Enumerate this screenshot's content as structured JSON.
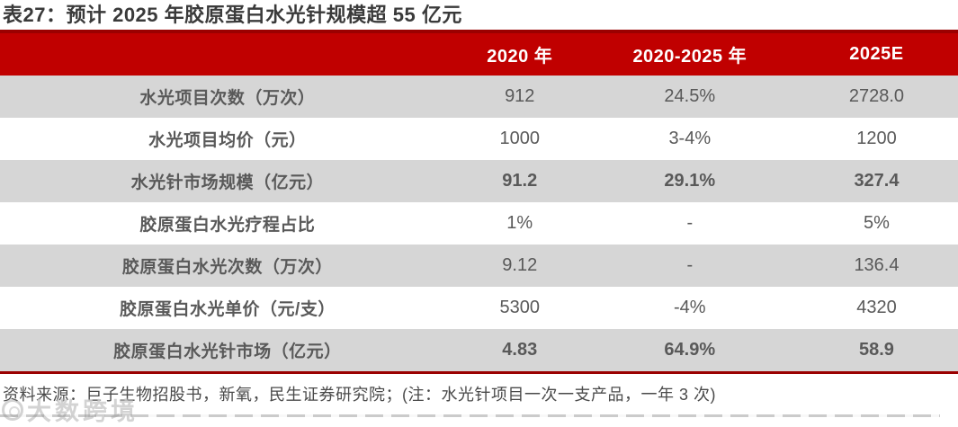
{
  "title": "表27：预计 2025 年胶原蛋白水光针规模超 55 亿元",
  "colors": {
    "header_red": "#c00000",
    "rule_dark_red": "#9a0000",
    "row_shade_gray": "#d6d6d6",
    "table_text": "#595959",
    "title_text": "#3a3a3a",
    "footer_text": "#4a4a4a"
  },
  "table": {
    "columns": [
      "",
      "2020 年",
      "2020-2025 年",
      "2025E"
    ],
    "rows": [
      {
        "label": "水光项目次数（万次）",
        "values": [
          "912",
          "24.5%",
          "2728.0"
        ],
        "emphasis": false
      },
      {
        "label": "水光项目均价（元）",
        "values": [
          "1000",
          "3-4%",
          "1200"
        ],
        "emphasis": false
      },
      {
        "label": "水光针市场规模（亿元）",
        "values": [
          "91.2",
          "29.1%",
          "327.4"
        ],
        "emphasis": true
      },
      {
        "label": "胶原蛋白水光疗程占比",
        "values": [
          "1%",
          "-",
          "5%"
        ],
        "emphasis": false
      },
      {
        "label": "胶原蛋白水光次数（万次）",
        "values": [
          "9.12",
          "-",
          "136.4"
        ],
        "emphasis": false
      },
      {
        "label": "胶原蛋白水光单价（元/支）",
        "values": [
          "5300",
          "-4%",
          "4320"
        ],
        "emphasis": false
      },
      {
        "label": "胶原蛋白水光针市场（亿元）",
        "values": [
          "4.83",
          "64.9%",
          "58.9"
        ],
        "emphasis": true
      }
    ]
  },
  "footer": {
    "text": "资料来源：巨子生物招股书，新氧，民生证券研究院；(注：水光针项目一次一支产品，一年 3 次)"
  },
  "watermark": {
    "text": "大数跨境"
  }
}
